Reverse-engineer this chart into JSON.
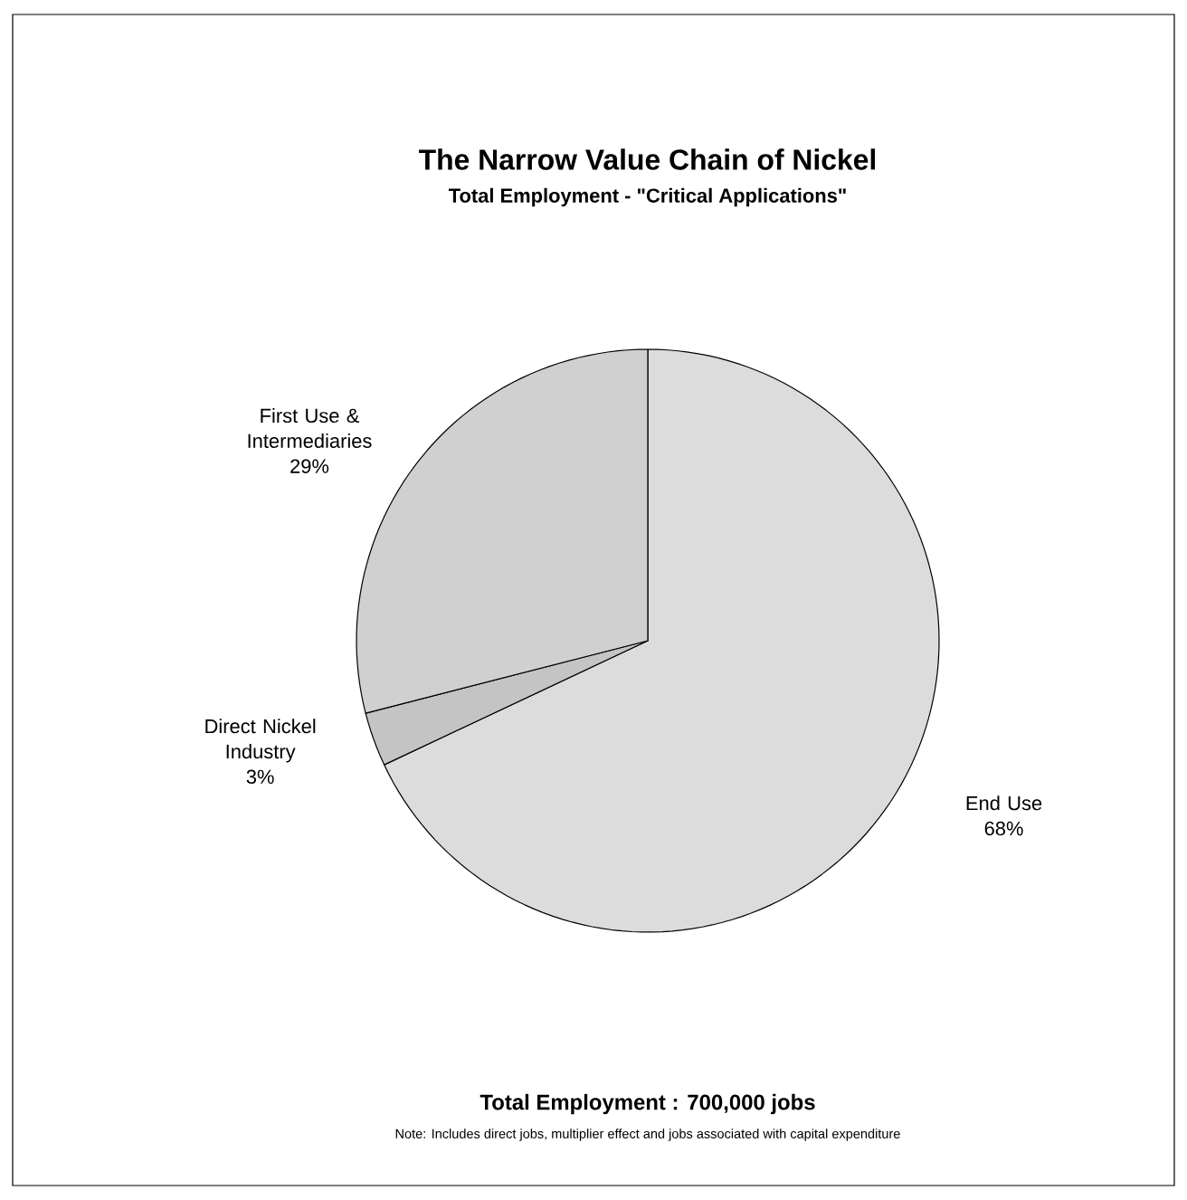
{
  "chart_data": {
    "type": "pie",
    "title": "The Narrow Value Chain of Nickel",
    "subtitle": "Total Employment - \"Critical Applications\"",
    "categories": [
      "End Use",
      "Direct Nickel Industry",
      "First Use & Intermediaries"
    ],
    "values": [
      68,
      3,
      29
    ],
    "value_labels": [
      "68%",
      "3%",
      "29%"
    ],
    "colors": [
      "#dcdcdc",
      "#c4c4c4",
      "#d0d0d0"
    ],
    "annotations": [
      "Total Employment : 700,000 jobs",
      "Note: Includes direct jobs, multiplier effect and jobs associated with capital expenditure"
    ]
  }
}
